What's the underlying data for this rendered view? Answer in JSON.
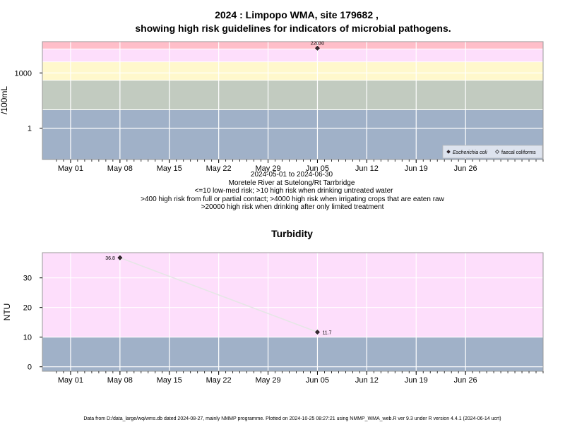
{
  "title_line1": "2024 : Limpopo WMA, site 179682 ,",
  "title_line2": "showing high risk guidelines for indicators of microbial pathogens.",
  "subtitle_lines": [
    "2024-05-01 to 2024-06-30",
    "Moretele River at Sutelong/Rt Tarrbridge",
    "<=10 low-med risk; >10 high risk when drinking untreated water",
    ">400 high risk from full or partial contact; >4000 high risk when irrigating crops that are eaten raw",
    ">20000 high risk when drinking after only limited treatment"
  ],
  "footer": "Data from D:/data_large/wq/wms.db dated 2024-08-27, mainly NMMP programme. Plotted on 2024-10-25 08:27:21 using NMMP_WMA_web.R ver 9.3 under R version 4.4.1 (2024-06-14 ucrt)",
  "x_ticks": [
    "May 01",
    "May 08",
    "May 15",
    "May 22",
    "May 29",
    "Jun 05",
    "Jun 12",
    "Jun 19",
    "Jun 26"
  ],
  "chart_data": [
    {
      "type": "scatter",
      "title": "",
      "ylabel": "/100mL",
      "y_scale": "log10",
      "ylim": [
        0.02,
        50000
      ],
      "xlim": [
        "2024-04-27",
        "2024-07-07"
      ],
      "yticks": [
        {
          "value": 1,
          "label": "1"
        },
        {
          "value": 1000,
          "label": "1000"
        }
      ],
      "bands": [
        {
          "from": 0.02,
          "to": 10,
          "color": "#a0b1c8"
        },
        {
          "from": 10,
          "to": 400,
          "color": "#c2cbc0"
        },
        {
          "from": 400,
          "to": 4000,
          "color": "#fff8cc"
        },
        {
          "from": 4000,
          "to": 20000,
          "color": "#fddefb"
        },
        {
          "from": 20000,
          "to": 50000,
          "color": "#ffbec9"
        }
      ],
      "band_lines": [
        10,
        400,
        4000,
        20000
      ],
      "series": [
        {
          "name": "Escherichia coli",
          "marker": "filled-diamond",
          "points": [
            {
              "x": "2024-06-05",
              "y": 22030,
              "label": "22030"
            }
          ]
        },
        {
          "name": "faecal coliforms",
          "marker": "open-diamond",
          "points": []
        }
      ],
      "legend": "bottom-right"
    },
    {
      "type": "line",
      "title": "Turbidity",
      "ylabel": "NTU",
      "ylim": [
        -1.5,
        38.5
      ],
      "xlim": [
        "2024-04-27",
        "2024-07-07"
      ],
      "yticks": [
        {
          "value": 0,
          "label": "0"
        },
        {
          "value": 10,
          "label": "10"
        },
        {
          "value": 20,
          "label": "20"
        },
        {
          "value": 30,
          "label": "30"
        }
      ],
      "bands": [
        {
          "from": -1.5,
          "to": 10,
          "color": "#a0b1c8"
        },
        {
          "from": 10,
          "to": 38.5,
          "color": "#fddefb"
        }
      ],
      "band_lines": [],
      "series": [
        {
          "name": "",
          "marker": "filled-diamond",
          "points": [
            {
              "x": "2024-05-08",
              "y": 36.8,
              "label": "36.8"
            },
            {
              "x": "2024-06-05",
              "y": 11.7,
              "label": "11.7"
            }
          ]
        }
      ]
    }
  ]
}
